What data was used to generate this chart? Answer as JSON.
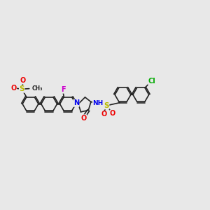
{
  "bg_color": "#e8e8e8",
  "bond_color": "#222222",
  "bond_width": 1.2,
  "fig_size": [
    3.0,
    3.0
  ],
  "dpi": 100,
  "atom_colors": {
    "N": "#0000ee",
    "O": "#ee0000",
    "S": "#bbbb00",
    "F": "#cc00cc",
    "Cl": "#00aa00",
    "C": "#222222",
    "H": "#666666"
  },
  "ring_r": 0.38,
  "xlim": [
    0,
    10
  ],
  "ylim": [
    2,
    8
  ]
}
